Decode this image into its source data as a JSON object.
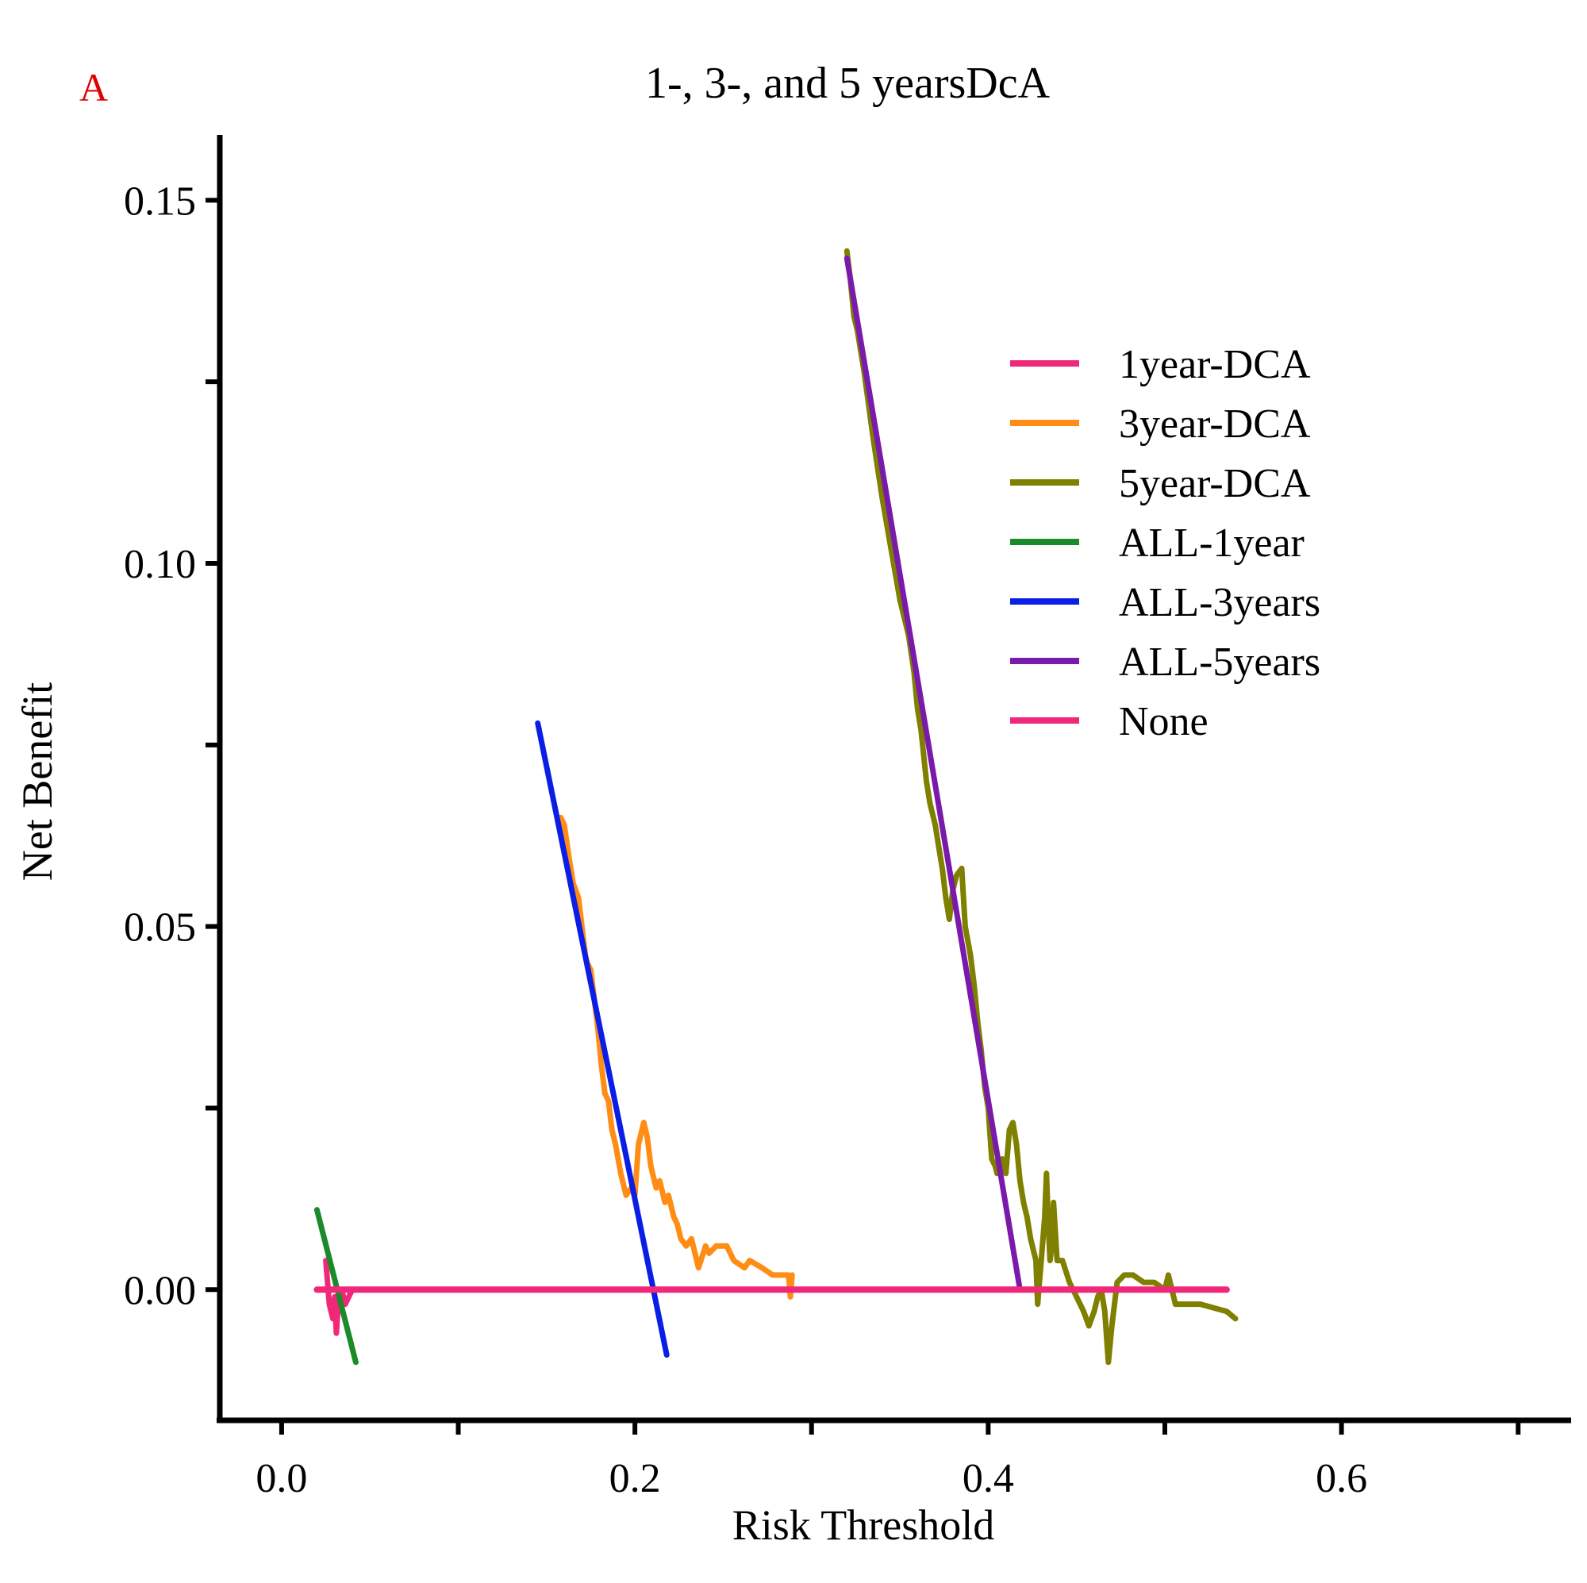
{
  "chart_data": {
    "type": "line",
    "panel_label": "A",
    "title": "1-, 3-, and 5 yearsDcA",
    "xlabel": "Risk Threshold",
    "ylabel": "Net Benefit",
    "xlim": [
      -0.035,
      0.73
    ],
    "ylim": [
      -0.018,
      0.159
    ],
    "x_ticks": [
      0.0,
      0.1,
      0.2,
      0.3,
      0.4,
      0.5,
      0.6,
      0.7
    ],
    "x_tick_labels": [
      "0.0",
      "",
      "0.2",
      "",
      "0.4",
      "",
      "0.6",
      ""
    ],
    "y_ticks": [
      0.0,
      0.025,
      0.05,
      0.075,
      0.1,
      0.125,
      0.15
    ],
    "y_tick_labels": [
      "0.00",
      "",
      "0.05",
      "",
      "0.10",
      "",
      "0.15"
    ],
    "legend_position": "top-right",
    "series": [
      {
        "name": "1year-DCA",
        "color": "#f0287a",
        "x": [
          0.025,
          0.027,
          0.029,
          0.03,
          0.031,
          0.032,
          0.033,
          0.034,
          0.036,
          0.038,
          0.04,
          0.045
        ],
        "y": [
          0.004,
          -0.002,
          -0.004,
          -0.001,
          -0.006,
          -0.002,
          -0.003,
          0.0,
          -0.002,
          -0.001,
          0.0,
          0.0
        ]
      },
      {
        "name": "3year-DCA",
        "color": "#ff8c14",
        "x": [
          0.158,
          0.16,
          0.163,
          0.165,
          0.168,
          0.17,
          0.172,
          0.173,
          0.175,
          0.177,
          0.179,
          0.181,
          0.183,
          0.185,
          0.187,
          0.189,
          0.192,
          0.195,
          0.198,
          0.2,
          0.202,
          0.205,
          0.207,
          0.209,
          0.212,
          0.214,
          0.217,
          0.219,
          0.222,
          0.224,
          0.226,
          0.229,
          0.232,
          0.236,
          0.24,
          0.242,
          0.246,
          0.252,
          0.256,
          0.262,
          0.265,
          0.272,
          0.278,
          0.283,
          0.287,
          0.288,
          0.289
        ],
        "y": [
          0.065,
          0.064,
          0.059,
          0.056,
          0.054,
          0.05,
          0.046,
          0.045,
          0.044,
          0.04,
          0.036,
          0.031,
          0.027,
          0.026,
          0.022,
          0.02,
          0.016,
          0.013,
          0.014,
          0.013,
          0.02,
          0.023,
          0.021,
          0.017,
          0.014,
          0.015,
          0.012,
          0.013,
          0.01,
          0.009,
          0.007,
          0.006,
          0.007,
          0.003,
          0.006,
          0.005,
          0.006,
          0.006,
          0.004,
          0.003,
          0.004,
          0.003,
          0.002,
          0.002,
          0.002,
          -0.001,
          0.002
        ]
      },
      {
        "name": "5year-DCA",
        "color": "#7f7f00",
        "x": [
          0.32,
          0.322,
          0.324,
          0.326,
          0.33,
          0.335,
          0.34,
          0.345,
          0.35,
          0.355,
          0.358,
          0.36,
          0.362,
          0.365,
          0.367,
          0.37,
          0.372,
          0.374,
          0.376,
          0.378,
          0.38,
          0.382,
          0.385,
          0.387,
          0.39,
          0.392,
          0.394,
          0.396,
          0.398,
          0.4,
          0.402,
          0.404,
          0.405,
          0.408,
          0.41,
          0.412,
          0.414,
          0.416,
          0.418,
          0.42,
          0.422,
          0.424,
          0.426,
          0.427,
          0.428,
          0.429,
          0.43,
          0.432,
          0.433,
          0.434,
          0.435,
          0.436,
          0.437,
          0.439,
          0.442,
          0.446,
          0.45,
          0.454,
          0.457,
          0.46,
          0.462,
          0.464,
          0.466,
          0.468,
          0.47,
          0.473,
          0.477,
          0.482,
          0.488,
          0.494,
          0.5,
          0.502,
          0.504,
          0.506,
          0.52,
          0.535,
          0.54
        ],
        "y": [
          0.143,
          0.139,
          0.134,
          0.132,
          0.126,
          0.117,
          0.109,
          0.102,
          0.095,
          0.09,
          0.085,
          0.08,
          0.077,
          0.07,
          0.067,
          0.064,
          0.061,
          0.058,
          0.054,
          0.051,
          0.055,
          0.057,
          0.058,
          0.05,
          0.046,
          0.042,
          0.037,
          0.033,
          0.028,
          0.025,
          0.018,
          0.017,
          0.016,
          0.018,
          0.016,
          0.022,
          0.023,
          0.02,
          0.015,
          0.012,
          0.01,
          0.007,
          0.005,
          0.004,
          -0.002,
          0.001,
          0.004,
          0.01,
          0.016,
          0.009,
          0.004,
          0.006,
          0.012,
          0.004,
          0.004,
          0.001,
          -0.001,
          -0.003,
          -0.005,
          -0.003,
          -0.001,
          0.0,
          -0.003,
          -0.01,
          -0.005,
          0.001,
          0.002,
          0.002,
          0.001,
          0.001,
          0.0,
          0.002,
          0.0,
          -0.002,
          -0.002,
          -0.003,
          -0.004
        ]
      },
      {
        "name": "ALL-1year",
        "color": "#1a8a2a",
        "x": [
          0.02,
          0.042
        ],
        "y": [
          0.011,
          -0.01
        ]
      },
      {
        "name": "ALL-3years",
        "color": "#0a1ee6",
        "x": [
          0.145,
          0.218
        ],
        "y": [
          0.078,
          -0.009
        ]
      },
      {
        "name": "ALL-5years",
        "color": "#7a1aaa",
        "x": [
          0.32,
          0.418
        ],
        "y": [
          0.142,
          0.0
        ]
      },
      {
        "name": "None",
        "color": "#f0287a",
        "x": [
          0.02,
          0.535
        ],
        "y": [
          0.0,
          0.0
        ]
      }
    ]
  }
}
